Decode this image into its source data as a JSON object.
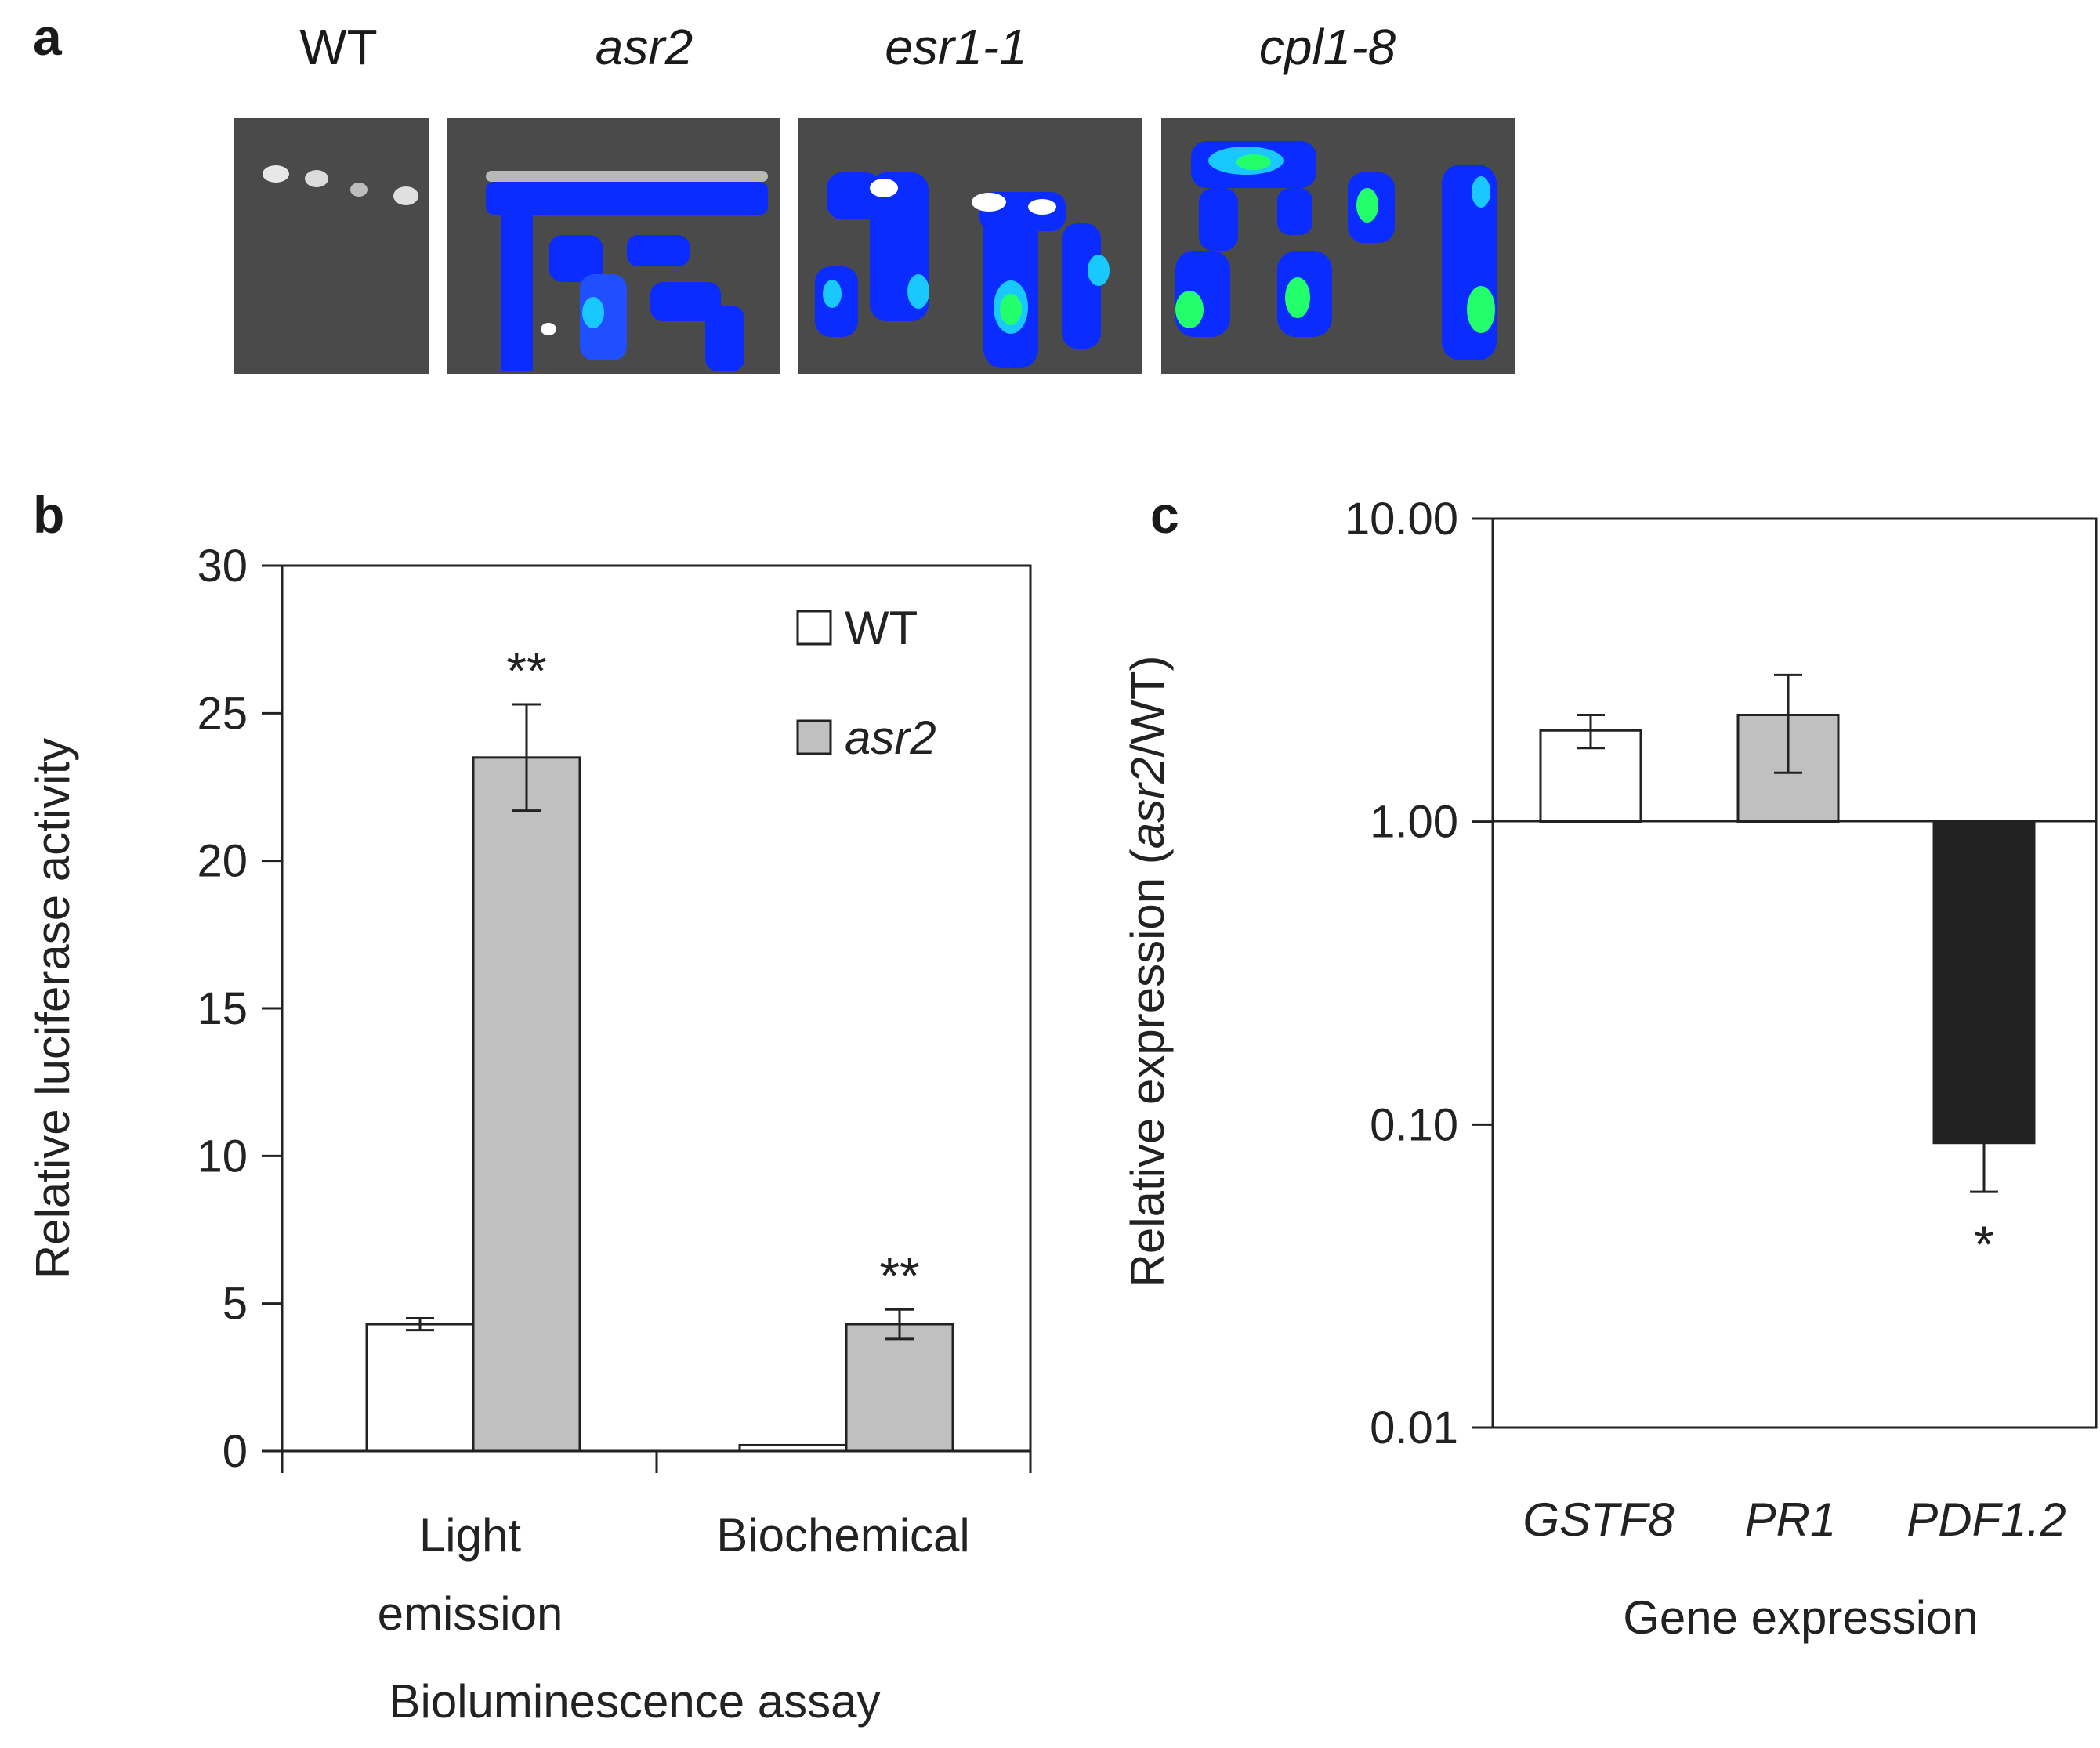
{
  "panel_a": {
    "letter": "a",
    "genotypes": [
      {
        "label": "WT",
        "italic": false
      },
      {
        "label": "asr2",
        "italic": true
      },
      {
        "label": "esr1-1",
        "italic": true
      },
      {
        "label": "cpl1-8",
        "italic": true
      }
    ],
    "image_background_color": "#4a4a4a",
    "signal_colors": [
      "#0a2cff",
      "#1f6bff",
      "#19c8ff",
      "#22ff6a",
      "#ffffff"
    ]
  },
  "chart_data": [
    {
      "panel": "b",
      "type": "bar",
      "ylabel": "Relative luciferase activity",
      "xlabel": "Bioluminescence assay",
      "categories": [
        "Light emission",
        "Biochemical"
      ],
      "category_label_lines": [
        [
          "Light",
          "emission"
        ],
        [
          "Biochemical"
        ]
      ],
      "ylim": [
        0,
        30
      ],
      "yticks": [
        "0",
        "5",
        "10",
        "15",
        "20",
        "25",
        "30"
      ],
      "legend": "top-right",
      "series": [
        {
          "name": "WT",
          "name_italic": false,
          "color": "#ffffff",
          "values": [
            4.3,
            0.2
          ],
          "errors": [
            0.2,
            0.0
          ]
        },
        {
          "name": "asr2",
          "name_italic": true,
          "color": "#c0c0c0",
          "values": [
            23.5,
            4.3
          ],
          "errors": [
            1.8,
            0.5
          ]
        }
      ],
      "annotations": [
        {
          "text": "**",
          "category": "Light emission",
          "series": "asr2"
        },
        {
          "text": "**",
          "category": "Biochemical",
          "series": "asr2"
        }
      ]
    },
    {
      "panel": "c",
      "type": "bar",
      "ylabel_parts": [
        "Relative expression (",
        "asr2",
        "/WT)"
      ],
      "xlabel": "Gene expression",
      "categories": [
        "GSTF8",
        "PR1",
        "PDF1.2"
      ],
      "categories_italic": true,
      "yscale": "log",
      "ylim": [
        0.01,
        10
      ],
      "yticks": [
        "0.01",
        "0.10",
        "1.00",
        "10.00"
      ],
      "baseline": 1.0,
      "values": [
        2.0,
        2.25,
        0.087
      ],
      "error_bounds": [
        [
          1.75,
          2.25
        ],
        [
          1.45,
          3.05
        ],
        [
          0.06,
          0.113
        ]
      ],
      "colors": [
        "#ffffff",
        "#c0c0c0",
        "#222222"
      ],
      "annotations": [
        {
          "text": "*",
          "category": "PDF1.2"
        }
      ]
    }
  ]
}
